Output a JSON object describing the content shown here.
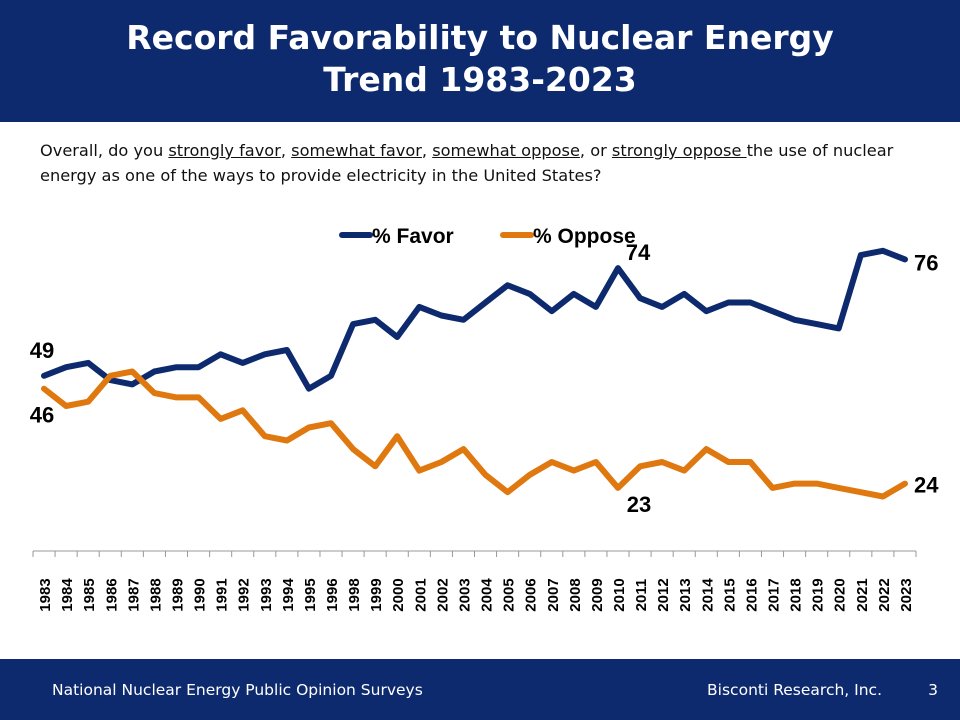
{
  "header": {
    "title_line1": "Record Favorability to Nuclear Energy",
    "title_line2": "Trend 1983-2023"
  },
  "question": {
    "prefix": "Overall, do you ",
    "opt1": "strongly favor",
    "sep1": ", ",
    "opt2": "somewhat favor",
    "sep2": ", ",
    "opt3": "somewhat oppose",
    "sep3": ", or ",
    "opt4": "strongly oppose ",
    "suffix": "the use of nuclear energy as one of the ways to provide electricity in the United States?"
  },
  "footer": {
    "source": "National Nuclear Energy Public Opinion Surveys",
    "organization": "Bisconti Research, Inc.",
    "page_number": "3"
  },
  "chart_data": {
    "type": "line",
    "title": "",
    "xlabel": "",
    "ylabel": "",
    "ylim": [
      0,
      100
    ],
    "grid": false,
    "legend_position": "top",
    "categories": [
      "1983",
      "1984",
      "1985",
      "1986",
      "1987",
      "1988",
      "1989",
      "1990",
      "1991",
      "1992",
      "1993",
      "1994",
      "1995",
      "1996",
      "1998",
      "1999",
      "2000",
      "2001",
      "2002",
      "2003",
      "2004",
      "2005",
      "2006",
      "2007",
      "2008",
      "2009",
      "2010",
      "2011",
      "2012",
      "2013",
      "2014",
      "2015",
      "2016",
      "2017",
      "2018",
      "2019",
      "2020",
      "2021",
      "2022",
      "2023"
    ],
    "series": [
      {
        "name": "% Favor",
        "color": "#0e2a6e",
        "values": [
          49,
          51,
          52,
          48,
          47,
          50,
          51,
          51,
          54,
          52,
          54,
          55,
          46,
          49,
          61,
          62,
          58,
          65,
          63,
          62,
          66,
          70,
          68,
          64,
          68,
          65,
          74,
          67,
          65,
          68,
          64,
          66,
          66,
          64,
          62,
          61,
          60,
          77,
          78,
          76
        ]
      },
      {
        "name": "% Oppose",
        "color": "#e07810",
        "values": [
          46,
          42,
          43,
          49,
          50,
          45,
          44,
          44,
          39,
          41,
          35,
          34,
          37,
          38,
          32,
          28,
          35,
          27,
          29,
          32,
          26,
          22,
          26,
          29,
          27,
          29,
          23,
          28,
          29,
          27,
          32,
          29,
          29,
          23,
          24,
          24,
          23,
          22,
          21,
          24
        ]
      }
    ],
    "data_labels": [
      {
        "series": 0,
        "index": 0,
        "text": "49"
      },
      {
        "series": 1,
        "index": 0,
        "text": "46"
      },
      {
        "series": 0,
        "index": 26,
        "text": "74"
      },
      {
        "series": 1,
        "index": 26,
        "text": "23"
      },
      {
        "series": 0,
        "index": 39,
        "text": "76"
      },
      {
        "series": 1,
        "index": 39,
        "text": "24"
      }
    ]
  }
}
